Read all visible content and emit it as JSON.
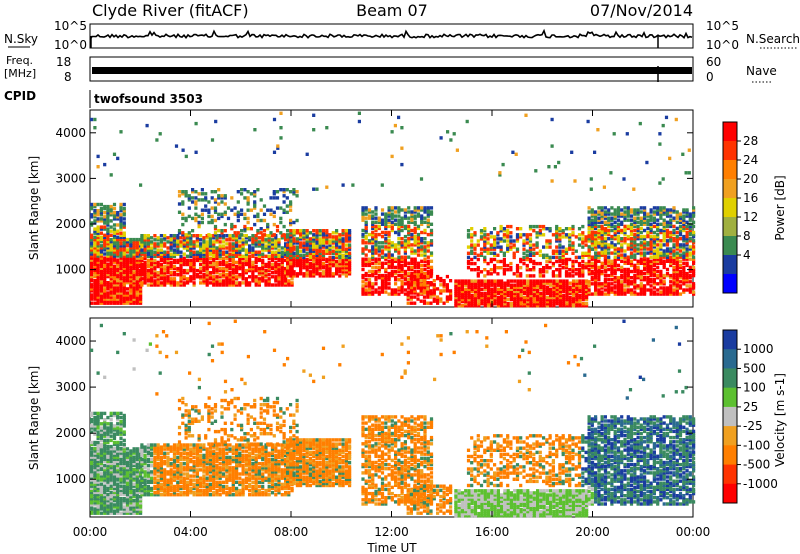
{
  "header": {
    "station": "Clyde River (fitACF)",
    "beam": "Beam 07",
    "date": "07/Nov/2014"
  },
  "strips": {
    "nsky_label": "N.Sky",
    "nsky_ticks": [
      "10^5",
      "10^0"
    ],
    "nsearch_label": "N.Search",
    "nsearch_ticks": [
      "10^5",
      "10^0"
    ],
    "freq_label_1": "Freq.",
    "freq_label_2": "[MHz]",
    "freq_ticks": [
      "18",
      "8"
    ],
    "nave_label": "Nave",
    "nave_ticks": [
      "60",
      "0"
    ],
    "cpid_label": "CPID",
    "cpid_value": "twofsound 3503"
  },
  "chart_data": [
    {
      "type": "heatmap",
      "name": "power",
      "ylabel": "Slant Range [km]",
      "yticks": [
        "4000",
        "3000",
        "2000",
        "1000"
      ],
      "ylim": [
        180,
        4500
      ],
      "colorbar": {
        "label": "Power [dB]",
        "ticks": [
          "28",
          "24",
          "20",
          "16",
          "12",
          "8",
          "4"
        ],
        "colors": [
          "#ff0000",
          "#ff3300",
          "#ff7f00",
          "#f0a020",
          "#e0d000",
          "#a0b040",
          "#3a8a50",
          "#1a3ca0",
          "#0000ff"
        ]
      }
    },
    {
      "type": "heatmap",
      "name": "velocity",
      "ylabel": "Slant Range [km]",
      "yticks": [
        "4000",
        "3000",
        "2000",
        "1000"
      ],
      "ylim": [
        180,
        4500
      ],
      "colorbar": {
        "label": "Velocity [m s-1]",
        "ticks": [
          "1000",
          "500",
          "100",
          "25",
          "-25",
          "-100",
          "-500",
          "-1000"
        ],
        "colors": [
          "#1a3ca0",
          "#2a6a90",
          "#3a8a60",
          "#5cc030",
          "#c0c0c0",
          "#f0a020",
          "#ff7f00",
          "#ff3300",
          "#ff0000"
        ]
      }
    }
  ],
  "xaxis": {
    "label": "Time UT",
    "ticks": [
      "00:00",
      "04:00",
      "08:00",
      "12:00",
      "16:00",
      "20:00",
      "00:00"
    ]
  }
}
